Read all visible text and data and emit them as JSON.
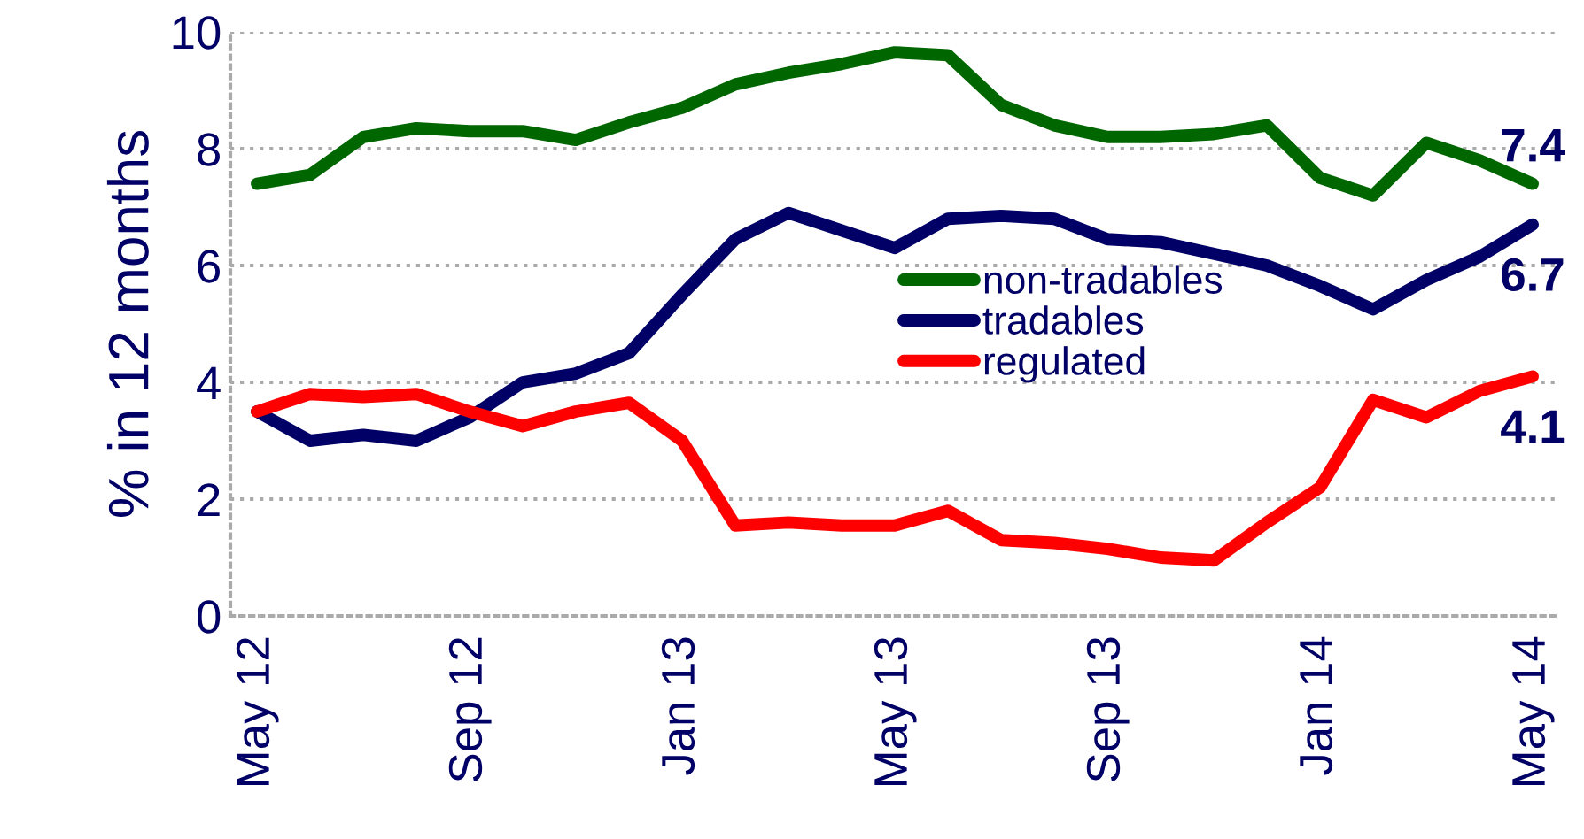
{
  "chart_data": {
    "type": "line",
    "ylabel": "% in 12 months",
    "categories": [
      "May 12",
      null,
      null,
      null,
      "Sep 12",
      null,
      null,
      null,
      "Jan 13",
      null,
      null,
      null,
      "May 13",
      null,
      null,
      null,
      "Sep 13",
      null,
      null,
      null,
      "Jan 14",
      null,
      null,
      null,
      "May 14"
    ],
    "series": [
      {
        "name": "non-tradables",
        "color": "#006600",
        "values": [
          7.4,
          7.55,
          8.2,
          8.35,
          8.3,
          8.3,
          8.15,
          8.45,
          8.7,
          9.1,
          9.3,
          9.45,
          9.65,
          9.6,
          8.75,
          8.4,
          8.2,
          8.2,
          8.25,
          8.4,
          7.5,
          7.2,
          8.1,
          7.8,
          7.4
        ]
      },
      {
        "name": "tradables",
        "color": "#000066",
        "values": [
          3.5,
          3.0,
          3.1,
          3.0,
          3.4,
          4.0,
          4.15,
          4.5,
          5.5,
          6.45,
          6.9,
          6.6,
          6.3,
          6.8,
          6.85,
          6.8,
          6.45,
          6.4,
          6.2,
          6.0,
          5.65,
          5.25,
          5.75,
          6.15,
          6.7
        ]
      },
      {
        "name": "regulated",
        "color": "#ff0000",
        "values": [
          3.5,
          3.8,
          3.75,
          3.8,
          3.5,
          3.25,
          3.5,
          3.65,
          3.0,
          1.55,
          1.6,
          1.55,
          1.55,
          1.8,
          1.3,
          1.25,
          1.15,
          1.0,
          0.95,
          1.6,
          2.2,
          3.7,
          3.4,
          3.85,
          4.1
        ]
      }
    ],
    "annotations": [
      {
        "text": "7.4",
        "x": "May 14",
        "y": 7.4
      },
      {
        "text": "6.7",
        "x": "May 14",
        "y": 6.7
      },
      {
        "text": "4.1",
        "x": "May 14",
        "y": 4.1
      }
    ],
    "ylim": [
      0,
      10
    ],
    "yticks": [
      0,
      2,
      4,
      6,
      8,
      10
    ],
    "grid": "y",
    "legend": "center",
    "marker": "none",
    "line_style": "solid"
  }
}
